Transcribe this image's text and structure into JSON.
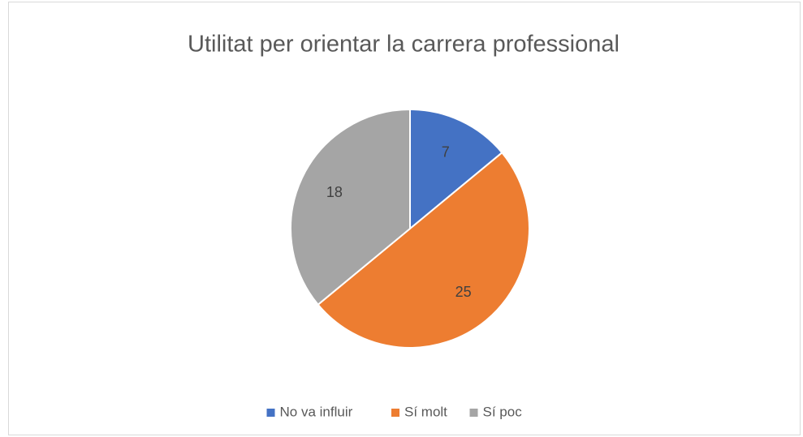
{
  "chart_data": {
    "type": "pie",
    "title": "Utilitat per orientar la carrera professional",
    "categories": [
      "No va influir",
      "Sí molt",
      "Sí poc"
    ],
    "values": [
      7,
      25,
      18
    ],
    "colors": [
      "#4472c4",
      "#ed7d31",
      "#a5a5a5"
    ],
    "legend": "bottom"
  }
}
